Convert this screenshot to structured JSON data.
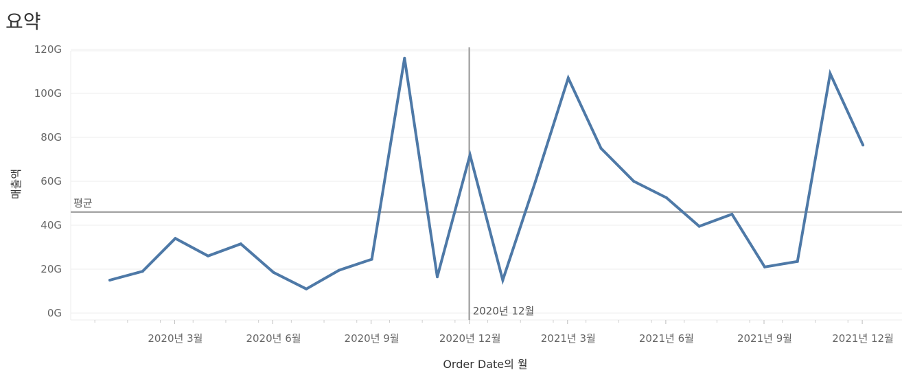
{
  "page": {
    "title": "요약"
  },
  "chart_data": {
    "type": "line",
    "title": "요약",
    "xlabel": "Order Date의 월",
    "ylabel": "매출액",
    "x": [
      "2020-01",
      "2020-02",
      "2020-03",
      "2020-04",
      "2020-05",
      "2020-06",
      "2020-07",
      "2020-08",
      "2020-09",
      "2020-10",
      "2020-11",
      "2020-12",
      "2021-01",
      "2021-02",
      "2021-03",
      "2021-04",
      "2021-05",
      "2021-06",
      "2021-07",
      "2021-08",
      "2021-09",
      "2021-10",
      "2021-11",
      "2021-12"
    ],
    "x_tick_labels": [
      "2020년 3월",
      "2020년 6월",
      "2020년 9월",
      "2020년 12월",
      "2021년 3월",
      "2021년 6월",
      "2021년 9월",
      "2021년 12월"
    ],
    "y_tick_labels": [
      "0G",
      "20G",
      "40G",
      "60G",
      "80G",
      "100G",
      "120G"
    ],
    "ylim": [
      0,
      120
    ],
    "series": [
      {
        "values": [
          15,
          19,
          34,
          26,
          31.5,
          18.5,
          11,
          19.5,
          24.5,
          116,
          16.5,
          72,
          15,
          60,
          107,
          75,
          60,
          52.5,
          39.5,
          45,
          21,
          23.5,
          109,
          76.5
        ]
      }
    ],
    "reference_lines": {
      "average": {
        "label": "평균",
        "value": 46
      },
      "marker": {
        "label": "2020년 12월",
        "x": "2020-12"
      }
    },
    "color": "#4e79a7",
    "grid": true
  }
}
